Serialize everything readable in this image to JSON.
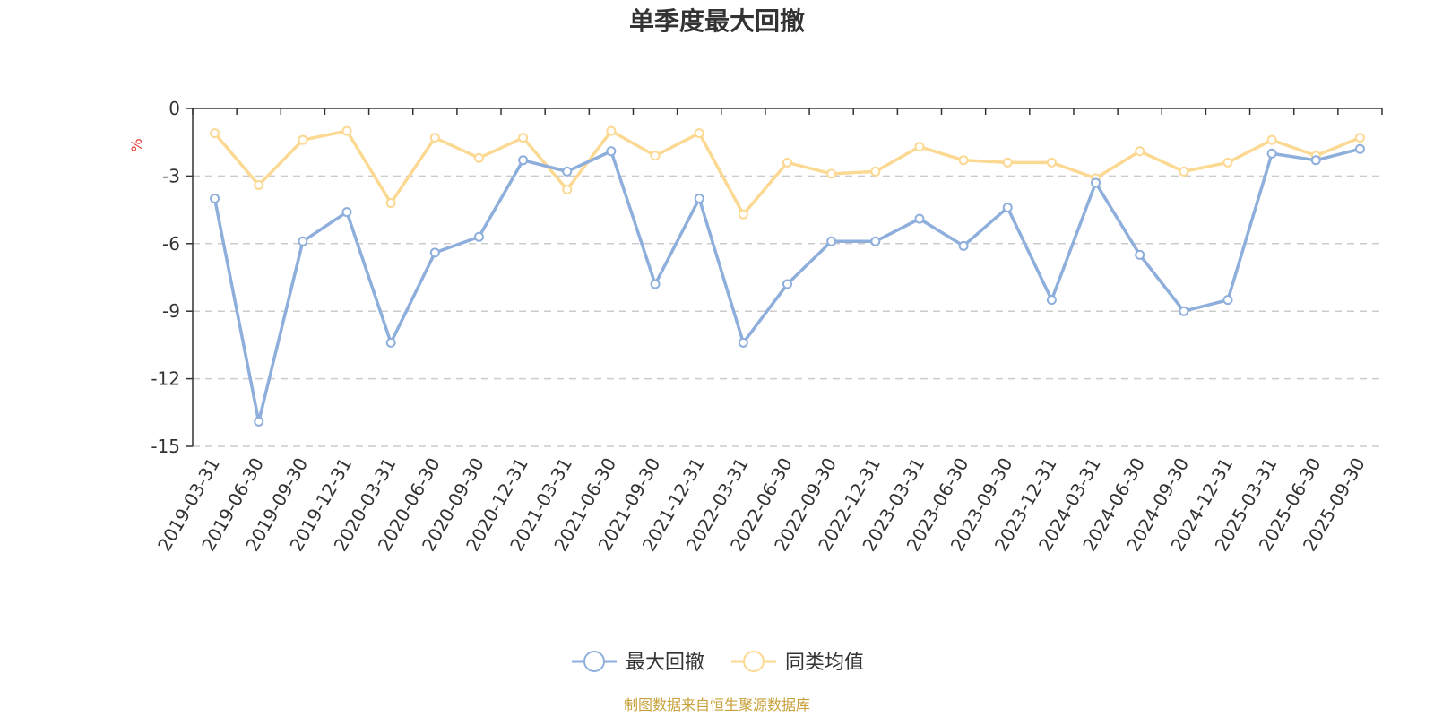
{
  "chart_data": {
    "type": "line",
    "title": "单季度最大回撤",
    "unit_label": "%",
    "ylim": [
      -15,
      0
    ],
    "yticks": [
      0,
      -3,
      -6,
      -9,
      -12,
      -15
    ],
    "grid": "horizontal-dashed",
    "legend_position": "bottom-center",
    "x": [
      "2019-03-31",
      "2019-06-30",
      "2019-09-30",
      "2019-12-31",
      "2020-03-31",
      "2020-06-30",
      "2020-09-30",
      "2020-12-31",
      "2021-03-31",
      "2021-06-30",
      "2021-09-30",
      "2021-12-31",
      "2022-03-31",
      "2022-06-30",
      "2022-09-30",
      "2022-12-31",
      "2023-03-31",
      "2023-06-30",
      "2023-09-30",
      "2023-12-31",
      "2024-03-31",
      "2024-06-30",
      "2024-09-30",
      "2024-12-31",
      "2025-03-31",
      "2025-06-30",
      "2025-09-30"
    ],
    "series": [
      {
        "name": "最大回撤",
        "color": "#8eaedb",
        "values": [
          -4.0,
          -13.9,
          -5.9,
          -4.6,
          -10.4,
          -6.4,
          -5.7,
          -2.3,
          -2.8,
          -1.9,
          -7.8,
          -4.0,
          -10.4,
          -7.8,
          -5.9,
          -5.9,
          -4.9,
          -6.1,
          -4.4,
          -8.5,
          -3.3,
          -6.5,
          -9.0,
          -8.5,
          -2.0,
          -2.3,
          -1.8
        ]
      },
      {
        "name": "同类均值",
        "color": "#fbd993",
        "values": [
          -1.1,
          -3.4,
          -1.4,
          -1.0,
          -4.2,
          -1.3,
          -2.2,
          -1.3,
          -3.6,
          -1.0,
          -2.1,
          -1.1,
          -4.7,
          -2.4,
          -2.9,
          -2.8,
          -1.7,
          -2.3,
          -2.4,
          -2.4,
          -3.1,
          -1.9,
          -2.8,
          -2.4,
          -1.4,
          -2.1,
          -1.3
        ]
      }
    ]
  },
  "source_note": "制图数据来自恒生聚源数据库"
}
